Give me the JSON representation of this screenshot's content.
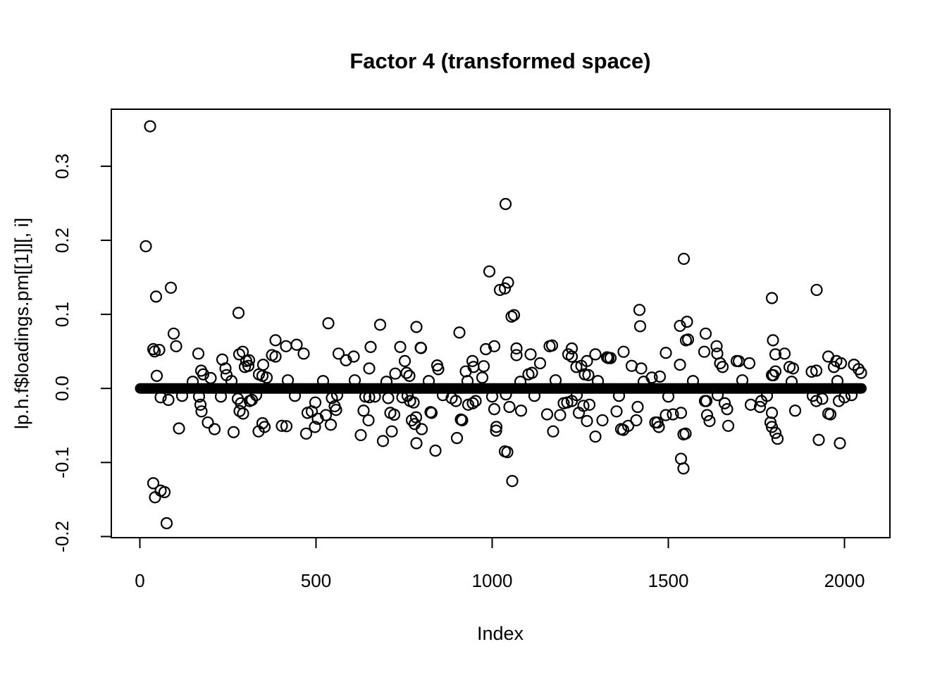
{
  "title": "Factor 4 (transformed space)",
  "chart_data": {
    "type": "scatter",
    "title": "Factor 4 (transformed space)",
    "xlabel": "Index",
    "ylabel": "lp.h.f$loadings.pm[[1]][, i]",
    "marker": "open-circle",
    "point_color": "#000000",
    "background": "#ffffff",
    "grid": false,
    "legend": "none",
    "n_points_total": 2048,
    "xlim": [
      -81,
      2129
    ],
    "ylim": [
      -0.2015,
      0.377
    ],
    "x_ticks": [
      0,
      500,
      1000,
      1500,
      2000
    ],
    "x_tick_labels": [
      "0",
      "500",
      "1000",
      "1500",
      "2000"
    ],
    "y_ticks": [
      -0.2,
      -0.1,
      0.0,
      0.1,
      0.2,
      0.3
    ],
    "y_tick_labels": [
      "-0.2",
      "-0.1",
      "0.0",
      "0.1",
      "0.2",
      "0.3"
    ],
    "dense_band": {
      "description": "Solid-looking horizontal band formed by ~2048 heavily overlapping open circles near zero",
      "index_from": 1,
      "index_to": 2048,
      "value": 0.0,
      "half_thickness": 0.007
    },
    "points": [
      [
        17,
        0.192
      ],
      [
        29,
        0.354
      ],
      [
        38,
        0.053
      ],
      [
        38,
        -0.128
      ],
      [
        42,
        0.05
      ],
      [
        43,
        -0.147
      ],
      [
        46,
        0.124
      ],
      [
        48,
        0.017
      ],
      [
        55,
        0.052
      ],
      [
        59,
        -0.012
      ],
      [
        59,
        -0.138
      ],
      [
        70,
        -0.14
      ],
      [
        76,
        -0.182
      ],
      [
        81,
        -0.0155
      ],
      [
        88,
        0.136
      ],
      [
        96,
        0.074
      ],
      [
        103,
        0.057
      ],
      [
        111,
        -0.054
      ],
      [
        120,
        -0.01
      ],
      [
        150,
        0.009
      ],
      [
        166,
        0.047
      ],
      [
        168,
        -0.011
      ],
      [
        172,
        -0.022
      ],
      [
        174,
        0.024
      ],
      [
        175,
        -0.031
      ],
      [
        180,
        0.019
      ],
      [
        193,
        -0.046
      ],
      [
        201,
        0.014
      ],
      [
        212,
        -0.055
      ],
      [
        230,
        -0.011
      ],
      [
        234,
        0.039
      ],
      [
        243,
        0.027
      ],
      [
        246,
        0.018
      ],
      [
        260,
        0.01
      ],
      [
        266,
        -0.059
      ],
      [
        278,
        -0.014
      ],
      [
        280,
        0.102
      ],
      [
        282,
        0.046
      ],
      [
        283,
        -0.0305
      ],
      [
        287,
        -0.02
      ],
      [
        292,
        0.0495
      ],
      [
        293,
        -0.034
      ],
      [
        298,
        0.029
      ],
      [
        302,
        0.037
      ],
      [
        308,
        0.0305
      ],
      [
        310,
        0.038
      ],
      [
        312,
        -0.017
      ],
      [
        318,
        -0.0155
      ],
      [
        330,
        -0.009
      ],
      [
        337,
        -0.058
      ],
      [
        338,
        0.019
      ],
      [
        348,
        0.017
      ],
      [
        348,
        -0.047
      ],
      [
        350,
        0.032
      ],
      [
        354,
        -0.052
      ],
      [
        360,
        0.0146
      ],
      [
        375,
        0.045
      ],
      [
        385,
        0.065
      ],
      [
        385,
        0.043
      ],
      [
        403,
        -0.0505
      ],
      [
        415,
        0.057
      ],
      [
        416,
        -0.051
      ],
      [
        420,
        0.011
      ],
      [
        440,
        -0.01
      ],
      [
        445,
        0.059
      ],
      [
        465,
        0.047
      ],
      [
        472,
        -0.061
      ],
      [
        476,
        -0.033
      ],
      [
        488,
        -0.031
      ],
      [
        497,
        -0.052
      ],
      [
        498,
        -0.019
      ],
      [
        505,
        -0.041
      ],
      [
        520,
        0.01
      ],
      [
        528,
        -0.036
      ],
      [
        535,
        0.088
      ],
      [
        542,
        -0.049
      ],
      [
        545,
        -0.013
      ],
      [
        553,
        -0.024
      ],
      [
        557,
        -0.029
      ],
      [
        560,
        -0.009
      ],
      [
        564,
        0.047
      ],
      [
        585,
        0.038
      ],
      [
        607,
        0.043
      ],
      [
        610,
        0.011
      ],
      [
        627,
        -0.063
      ],
      [
        635,
        -0.03
      ],
      [
        640,
        -0.011
      ],
      [
        649,
        -0.043
      ],
      [
        651,
        -0.012
      ],
      [
        651,
        0.027
      ],
      [
        655,
        0.056
      ],
      [
        667,
        -0.011
      ],
      [
        682,
        0.086
      ],
      [
        690,
        -0.071
      ],
      [
        700,
        0.009
      ],
      [
        705,
        -0.013
      ],
      [
        711,
        -0.033
      ],
      [
        715,
        -0.058
      ],
      [
        722,
        -0.0355
      ],
      [
        725,
        0.02
      ],
      [
        739,
        0.056
      ],
      [
        745,
        -0.012
      ],
      [
        752,
        0.037
      ],
      [
        757,
        0.021
      ],
      [
        760,
        -0.01
      ],
      [
        765,
        0.017
      ],
      [
        767,
        -0.017
      ],
      [
        772,
        -0.043
      ],
      [
        777,
        -0.019
      ],
      [
        780,
        -0.048
      ],
      [
        784,
        -0.039
      ],
      [
        785,
        0.083
      ],
      [
        785,
        -0.074
      ],
      [
        797,
        0.055
      ],
      [
        798,
        0.0545
      ],
      [
        800,
        -0.055
      ],
      [
        820,
        0.01
      ],
      [
        825,
        -0.032
      ],
      [
        828,
        -0.033
      ],
      [
        839,
        -0.084
      ],
      [
        844,
        0.031
      ],
      [
        847,
        0.026
      ],
      [
        860,
        -0.009
      ],
      [
        885,
        -0.013
      ],
      [
        897,
        -0.017
      ],
      [
        900,
        -0.067
      ],
      [
        907,
        0.0755
      ],
      [
        911,
        -0.042
      ],
      [
        915,
        -0.043
      ],
      [
        925,
        0.023
      ],
      [
        930,
        0.01
      ],
      [
        932,
        -0.022
      ],
      [
        944,
        0.037
      ],
      [
        945,
        -0.02
      ],
      [
        947,
        0.029
      ],
      [
        953,
        -0.017
      ],
      [
        972,
        0.0146
      ],
      [
        976,
        0.03
      ],
      [
        982,
        0.053
      ],
      [
        992,
        0.158
      ],
      [
        1000,
        -0.011
      ],
      [
        1006,
        0.057
      ],
      [
        1006,
        -0.028
      ],
      [
        1011,
        -0.057
      ],
      [
        1012,
        -0.052
      ],
      [
        1022,
        0.133
      ],
      [
        1036,
        0.135
      ],
      [
        1036,
        -0.085
      ],
      [
        1038,
        0.249
      ],
      [
        1039,
        -0.008
      ],
      [
        1043,
        -0.086
      ],
      [
        1045,
        0.143
      ],
      [
        1049,
        -0.025
      ],
      [
        1055,
        0.097
      ],
      [
        1057,
        -0.125
      ],
      [
        1062,
        0.099
      ],
      [
        1069,
        0.054
      ],
      [
        1069,
        0.045
      ],
      [
        1080,
        0.009
      ],
      [
        1082,
        -0.03
      ],
      [
        1103,
        0.019
      ],
      [
        1109,
        0.046
      ],
      [
        1113,
        0.021
      ],
      [
        1120,
        -0.01
      ],
      [
        1136,
        0.034
      ],
      [
        1156,
        -0.035
      ],
      [
        1163,
        0.057
      ],
      [
        1170,
        0.058
      ],
      [
        1173,
        -0.058
      ],
      [
        1180,
        0.011
      ],
      [
        1193,
        -0.036
      ],
      [
        1203,
        -0.02
      ],
      [
        1213,
        -0.019
      ],
      [
        1216,
        0.046
      ],
      [
        1226,
        0.054
      ],
      [
        1226,
        0.043
      ],
      [
        1226,
        -0.017
      ],
      [
        1239,
        0.029
      ],
      [
        1240,
        -0.009
      ],
      [
        1246,
        -0.033
      ],
      [
        1253,
        0.0305
      ],
      [
        1259,
        -0.0235
      ],
      [
        1263,
        0.019
      ],
      [
        1269,
        0.037
      ],
      [
        1269,
        -0.044
      ],
      [
        1273,
        0.018
      ],
      [
        1276,
        -0.022
      ],
      [
        1293,
        0.046
      ],
      [
        1293,
        -0.065
      ],
      [
        1300,
        0.01
      ],
      [
        1313,
        -0.043
      ],
      [
        1326,
        0.042
      ],
      [
        1330,
        0.041
      ],
      [
        1336,
        0.041
      ],
      [
        1353,
        -0.031
      ],
      [
        1360,
        -0.01
      ],
      [
        1366,
        -0.055
      ],
      [
        1372,
        -0.056
      ],
      [
        1373,
        0.0495
      ],
      [
        1386,
        -0.0505
      ],
      [
        1396,
        0.0305
      ],
      [
        1409,
        -0.043
      ],
      [
        1413,
        -0.025
      ],
      [
        1418,
        0.106
      ],
      [
        1420,
        0.084
      ],
      [
        1423,
        0.027
      ],
      [
        1430,
        0.009
      ],
      [
        1453,
        0.0146
      ],
      [
        1463,
        -0.046
      ],
      [
        1469,
        -0.046
      ],
      [
        1473,
        -0.052
      ],
      [
        1476,
        0.016
      ],
      [
        1493,
        0.048
      ],
      [
        1493,
        -0.036
      ],
      [
        1500,
        -0.011
      ],
      [
        1513,
        -0.035
      ],
      [
        1533,
        0.0845
      ],
      [
        1533,
        0.032
      ],
      [
        1536,
        -0.033
      ],
      [
        1536,
        -0.095
      ],
      [
        1543,
        -0.108
      ],
      [
        1543,
        -0.062
      ],
      [
        1544,
        0.175
      ],
      [
        1549,
        -0.061
      ],
      [
        1550,
        0.065
      ],
      [
        1553,
        0.09
      ],
      [
        1556,
        0.066
      ],
      [
        1570,
        0.01
      ],
      [
        1602,
        0.0495
      ],
      [
        1604,
        -0.017
      ],
      [
        1606,
        0.074
      ],
      [
        1608,
        -0.017
      ],
      [
        1610,
        -0.036
      ],
      [
        1617,
        -0.044
      ],
      [
        1637,
        0.057
      ],
      [
        1639,
        0.047
      ],
      [
        1640,
        -0.009
      ],
      [
        1647,
        0.034
      ],
      [
        1654,
        0.029
      ],
      [
        1660,
        -0.02
      ],
      [
        1667,
        -0.028
      ],
      [
        1670,
        -0.0505
      ],
      [
        1694,
        0.037
      ],
      [
        1700,
        0.0368
      ],
      [
        1710,
        0.011
      ],
      [
        1730,
        0.034
      ],
      [
        1734,
        -0.022
      ],
      [
        1760,
        -0.025
      ],
      [
        1764,
        -0.017
      ],
      [
        1780,
        -0.01
      ],
      [
        1790,
        -0.046
      ],
      [
        1794,
        0.122
      ],
      [
        1794,
        0.018
      ],
      [
        1794,
        -0.033
      ],
      [
        1794,
        -0.052
      ],
      [
        1797,
        0.065
      ],
      [
        1798,
        0.0178
      ],
      [
        1804,
        0.046
      ],
      [
        1804,
        0.023
      ],
      [
        1804,
        -0.06
      ],
      [
        1810,
        -0.068
      ],
      [
        1830,
        0.047
      ],
      [
        1844,
        0.029
      ],
      [
        1850,
        0.009
      ],
      [
        1854,
        0.027
      ],
      [
        1860,
        -0.03
      ],
      [
        1907,
        0.0226
      ],
      [
        1910,
        -0.01
      ],
      [
        1920,
        0.024
      ],
      [
        1920,
        -0.017
      ],
      [
        1921,
        0.133
      ],
      [
        1927,
        -0.0695
      ],
      [
        1937,
        -0.014
      ],
      [
        1954,
        0.043
      ],
      [
        1954,
        -0.034
      ],
      [
        1960,
        -0.035
      ],
      [
        1970,
        0.029
      ],
      [
        1977,
        0.037
      ],
      [
        1980,
        0.01
      ],
      [
        1984,
        -0.017
      ],
      [
        1987,
        -0.074
      ],
      [
        1990,
        0.034
      ],
      [
        2000,
        -0.012
      ],
      [
        2020,
        -0.009
      ],
      [
        2027,
        0.032
      ],
      [
        2040,
        0.026
      ],
      [
        2047,
        0.021
      ]
    ]
  }
}
